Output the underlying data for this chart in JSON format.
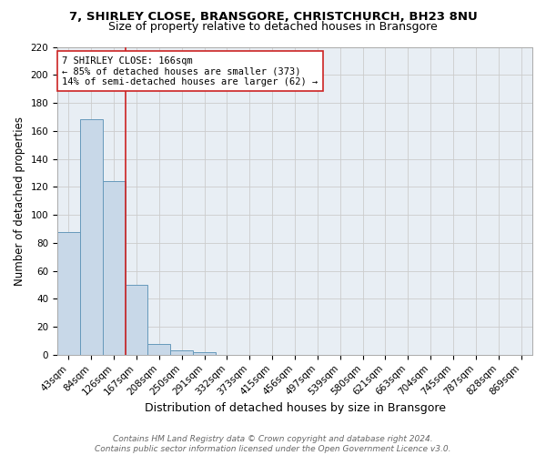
{
  "title": "7, SHIRLEY CLOSE, BRANSGORE, CHRISTCHURCH, BH23 8NU",
  "subtitle": "Size of property relative to detached houses in Bransgore",
  "xlabel": "Distribution of detached houses by size in Bransgore",
  "ylabel": "Number of detached properties",
  "bin_labels": [
    "43sqm",
    "84sqm",
    "126sqm",
    "167sqm",
    "208sqm",
    "250sqm",
    "291sqm",
    "332sqm",
    "373sqm",
    "415sqm",
    "456sqm",
    "497sqm",
    "539sqm",
    "580sqm",
    "621sqm",
    "663sqm",
    "704sqm",
    "745sqm",
    "787sqm",
    "828sqm",
    "869sqm"
  ],
  "bar_heights": [
    88,
    168,
    124,
    50,
    8,
    3,
    2,
    0,
    0,
    0,
    0,
    0,
    0,
    0,
    0,
    0,
    0,
    0,
    0,
    0,
    0
  ],
  "bar_color": "#c8d8e8",
  "bar_edge_color": "#6699bb",
  "vline_color": "#cc2222",
  "annotation_line1": "7 SHIRLEY CLOSE: 166sqm",
  "annotation_line2": "← 85% of detached houses are smaller (373)",
  "annotation_line3": "14% of semi-detached houses are larger (62) →",
  "annotation_box_color": "white",
  "annotation_box_edge": "#cc2222",
  "ylim": [
    0,
    220
  ],
  "yticks": [
    0,
    20,
    40,
    60,
    80,
    100,
    120,
    140,
    160,
    180,
    200,
    220
  ],
  "grid_color": "#cccccc",
  "background_color": "#e8eef4",
  "footer_line1": "Contains HM Land Registry data © Crown copyright and database right 2024.",
  "footer_line2": "Contains public sector information licensed under the Open Government Licence v3.0.",
  "title_fontsize": 9.5,
  "subtitle_fontsize": 9,
  "xlabel_fontsize": 9,
  "ylabel_fontsize": 8.5,
  "tick_fontsize": 7.5,
  "annotation_fontsize": 7.5,
  "footer_fontsize": 6.5
}
